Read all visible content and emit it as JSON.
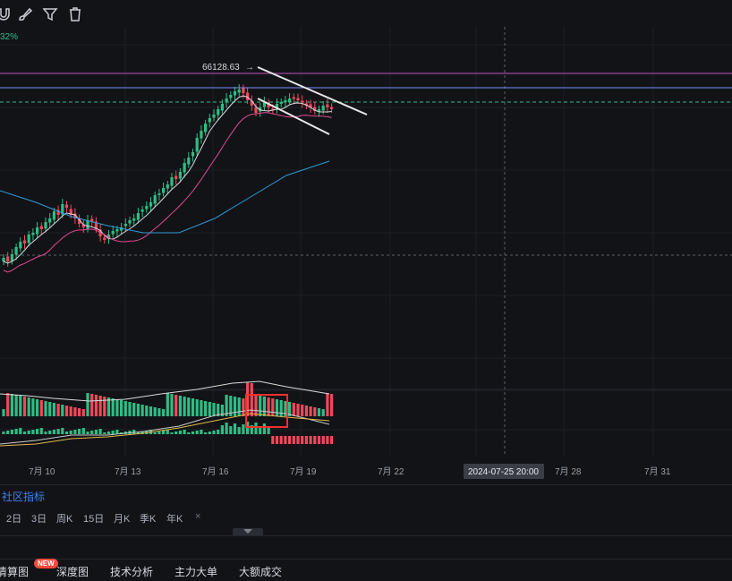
{
  "toolbar": {
    "icons": [
      "magnet-icon",
      "brush-icon",
      "filter-icon",
      "trash-icon"
    ]
  },
  "chart": {
    "change_label": "32%",
    "price_high_label": "66128.63",
    "crosshair_date_label": "2024-07-25 20:00",
    "date_ticks": [
      "7月 10",
      "7月 13",
      "7月 16",
      "7月 19",
      "7月 22",
      "7月 28",
      "7月 31"
    ],
    "colors": {
      "up": "#2ebd85",
      "down": "#f0485a",
      "ma_fast": "#d9d9d9",
      "ma_mid": "#e24a8f",
      "ma_slow": "#2e9bd6",
      "resistance_line": "#c34fc0",
      "support_line": "#7b8cff",
      "current_price_line": "#2ebd85",
      "highlight_box": "#f0302b"
    }
  },
  "chart_data": {
    "type": "candlestick",
    "x": [
      "7月 10",
      "7月 13",
      "7月 16",
      "7月 19",
      "7月 22",
      "7月 25",
      "7月 28",
      "7月 31"
    ],
    "annotations": [
      "66128.63",
      "2024-07-25 20:00"
    ]
  },
  "community": {
    "label": "社区指标"
  },
  "intervals": [
    "2日",
    "3日",
    "周K",
    "15日",
    "月K",
    "季K",
    "年K",
    "×"
  ],
  "tabs": {
    "items": [
      "清算图",
      "深度图",
      "技术分析",
      "主力大单",
      "大额成交"
    ],
    "new_badge": "NEW"
  }
}
